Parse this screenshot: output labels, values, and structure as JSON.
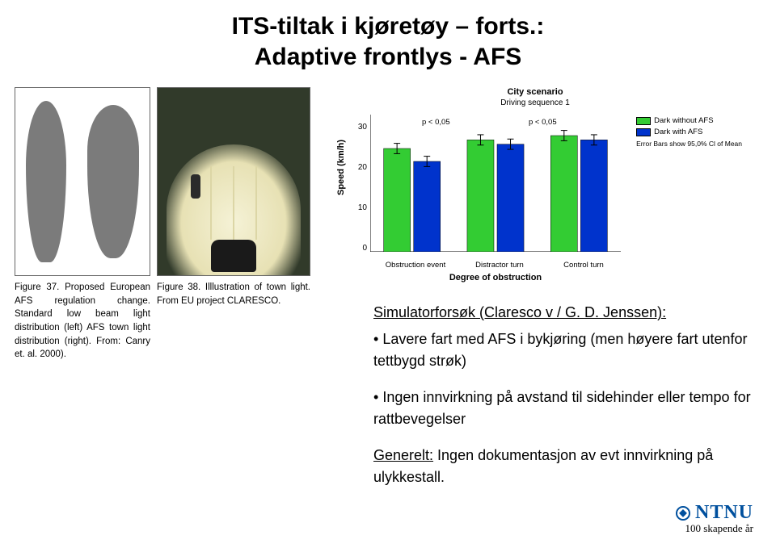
{
  "title_line1": "ITS-tiltak i kjøretøy – forts.:",
  "title_line2": "Adaptive frontlys - AFS",
  "fig37_caption": "Figure 37. Proposed European AFS regulation change. Standard low beam light distribution (left) AFS town light distribution (right). From: Canry et. al. 2000).",
  "fig38_caption": "Figure 38. Illlustration of town light. From EU project CLARESCO.",
  "chart": {
    "type": "bar",
    "title1": "City scenario",
    "title2": "Driving sequence 1",
    "ylabel": "Speed (km/h)",
    "xlabel": "Degree of obstruction",
    "ylim": [
      0,
      30
    ],
    "ytick_step": 10,
    "yticks": [
      "0",
      "10",
      "20",
      "30"
    ],
    "categories": [
      "Obstruction event",
      "Distractor turn",
      "Control turn"
    ],
    "series": [
      {
        "name": "Dark without AFS",
        "color": "#33cc33",
        "values": [
          24,
          26,
          27
        ]
      },
      {
        "name": "Dark with AFS",
        "color": "#0033cc",
        "values": [
          21,
          25,
          26
        ]
      }
    ],
    "p_labels": [
      "p < 0,05",
      "p < 0,05"
    ],
    "error_bar_half": 1.2,
    "legend_note": "Error Bars show 95,0% Cl of Mean",
    "axis_color": "#000000",
    "error_color": "#000000",
    "background": "#ffffff",
    "bar_group_gap": 0.25,
    "bar_width": 0.32
  },
  "info": {
    "head": "Simulatorforsøk (Claresco v / G. D. Jenssen):",
    "bullet1": "Lavere fart med AFS i bykjøring (men høyere fart utenfor tettbygd strøk)",
    "bullet2": "Ingen innvirkning på avstand til sidehinder eller tempo for rattbevegelser",
    "gen_label": "Generelt:",
    "gen_text": " Ingen dokumentasjon av evt innvirkning på ulykkestall."
  },
  "footer": {
    "brand": "NTNU",
    "sub": "100 skapende år"
  }
}
